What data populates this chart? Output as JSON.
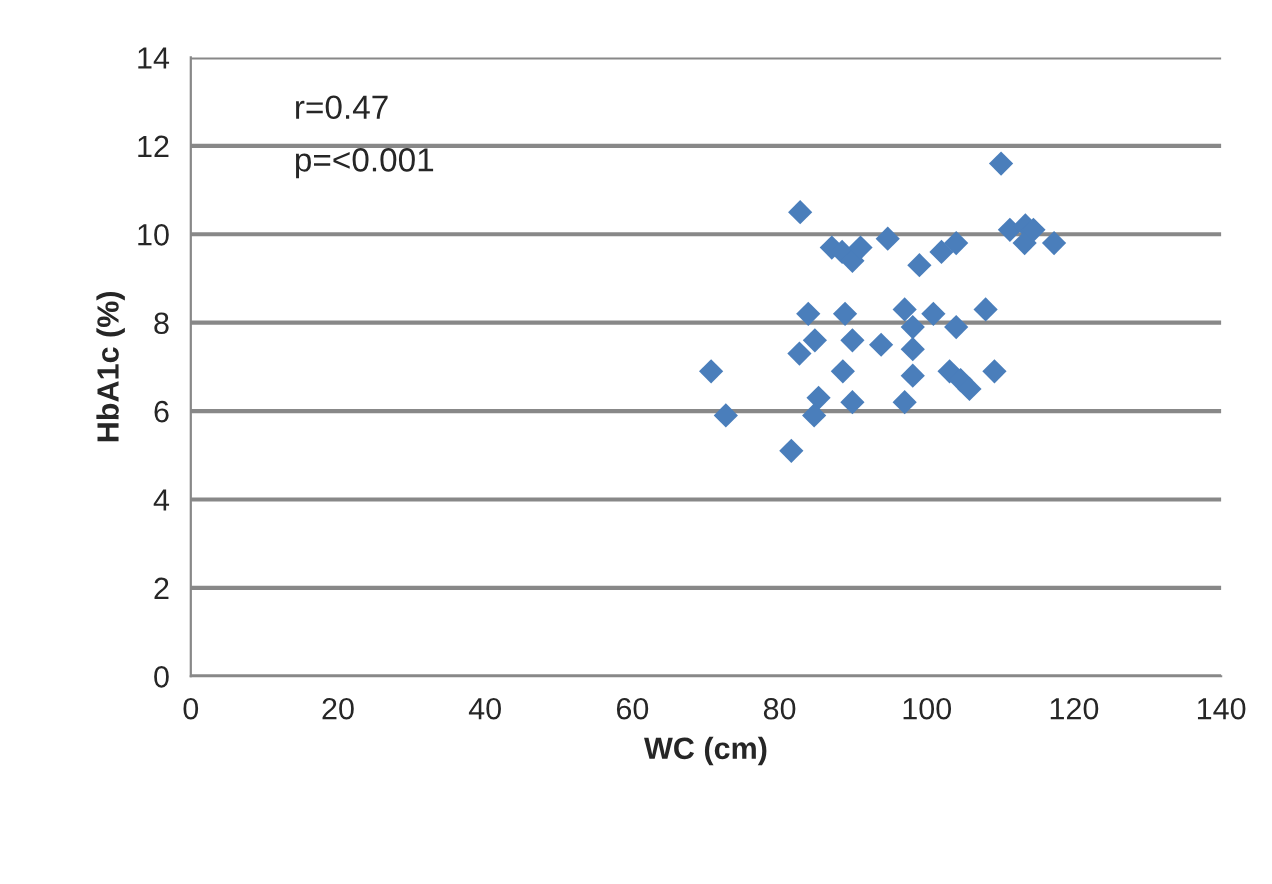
{
  "chart_data": {
    "type": "scatter",
    "xlabel": "WC (cm)",
    "ylabel": "HbA1c (%)",
    "annotations": [
      "r=0.47",
      "p=<0.001"
    ],
    "x": [
      70.7,
      72.7,
      81.6,
      82.8,
      83.9,
      82.7,
      84.8,
      85.3,
      84.7,
      87.1,
      88.5,
      89.9,
      91.0,
      88.9,
      89.9,
      88.6,
      89.9,
      94.7,
      93.8,
      97.0,
      98.1,
      98.1,
      98.1,
      97.0,
      99.0,
      100.9,
      102.0,
      104.0,
      104.0,
      103.1,
      104.6,
      105.8,
      108.0,
      109.2,
      110.1,
      111.3,
      113.4,
      113.3,
      114.5,
      117.3
    ],
    "series": [
      {
        "color": "#4a7ebb",
        "values": [
          6.9,
          5.9,
          5.1,
          10.5,
          8.2,
          7.3,
          7.6,
          6.3,
          5.9,
          9.7,
          9.6,
          9.4,
          9.7,
          8.2,
          7.6,
          6.9,
          6.2,
          9.9,
          7.5,
          8.3,
          7.9,
          7.4,
          6.8,
          6.2,
          9.3,
          8.2,
          9.6,
          9.8,
          7.9,
          6.9,
          6.7,
          6.5,
          8.3,
          6.9,
          11.6,
          10.1,
          10.2,
          9.8,
          10.1,
          9.8
        ]
      }
    ],
    "marker": "diamond",
    "xlim": [
      0,
      140
    ],
    "xticks": [
      0,
      20,
      40,
      60,
      80,
      100,
      120,
      140
    ],
    "ylim": [
      0,
      14
    ],
    "yticks": [
      0,
      2,
      4,
      6,
      8,
      10,
      12,
      14
    ],
    "grid": "y",
    "legend": false
  }
}
